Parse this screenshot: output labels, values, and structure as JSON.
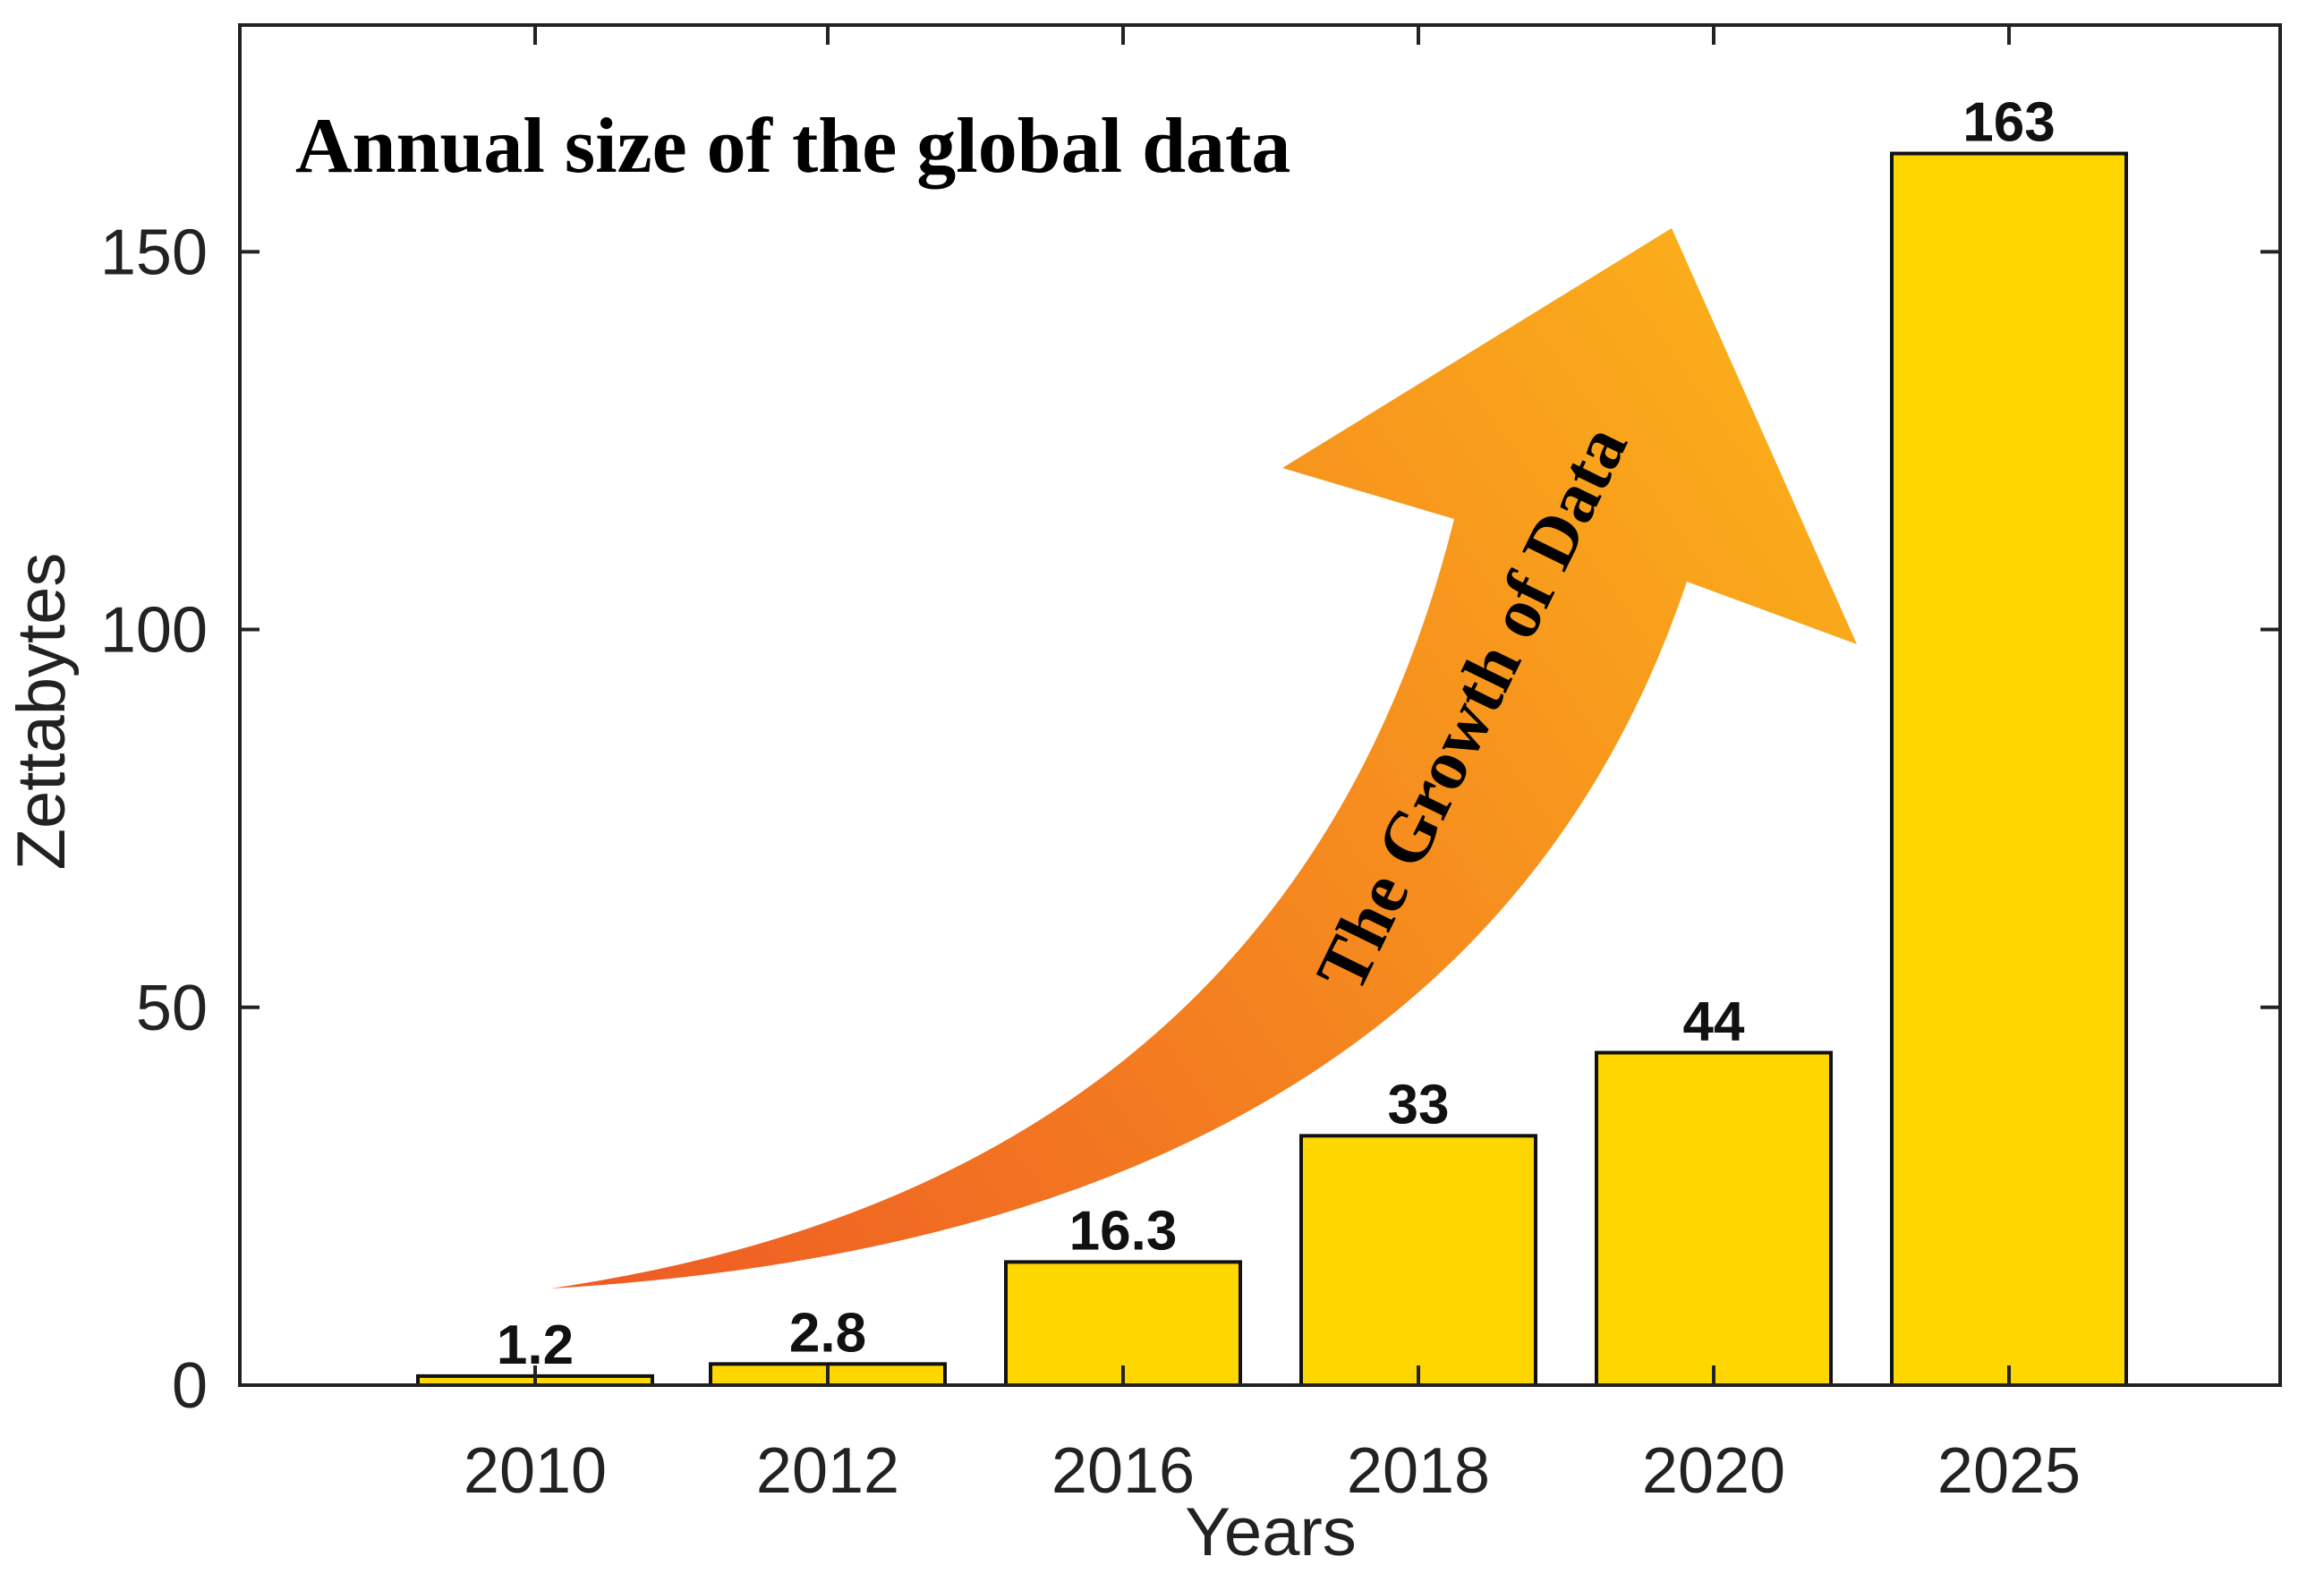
{
  "chart_data": {
    "type": "bar",
    "title": "Annual size of the global data",
    "xlabel": "Years",
    "ylabel": "Zettabytes",
    "categories": [
      "2010",
      "2012",
      "2016",
      "2018",
      "2020",
      "2025"
    ],
    "values": [
      1.2,
      2.8,
      16.3,
      33,
      44,
      163
    ],
    "value_labels": [
      "1.2",
      "2.8",
      "16.3",
      "33",
      "44",
      "163"
    ],
    "yticks": [
      0,
      50,
      100,
      150
    ],
    "ylim": [
      0,
      180
    ],
    "grid": false,
    "bar_color": "#FFD700",
    "annotation": {
      "text": "The Growth of Data",
      "gradient_start": "#EE5A24",
      "gradient_end": "#FBB01A"
    }
  }
}
